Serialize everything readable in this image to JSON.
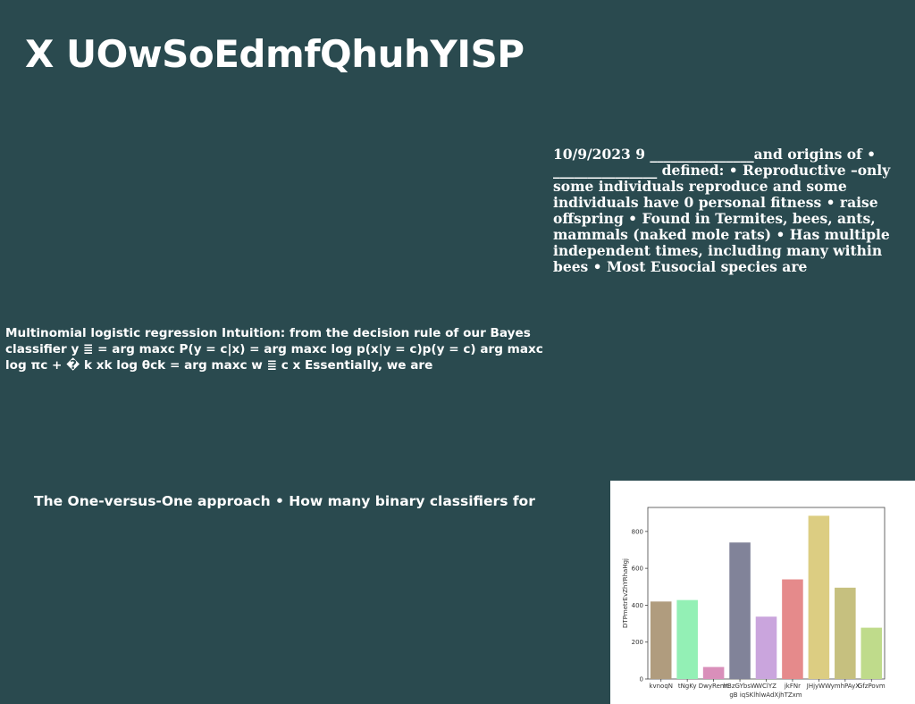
{
  "slide": {
    "title": "X UOwSoEdmfQhuhYISP",
    "eusocial_text": "10/9/2023 9 _______________and origins of • _______________ defined: • Reproductive –only some individuals reproduce and some individuals have 0 personal fitness • raise offspring • Found in Termites, bees, ants, mammals (naked mole rats) • Has multiple independent times, including many within bees • Most Eusocial species are",
    "multinomial_text": "Multinomial logistic regression Intuition: from the decision rule of our Bayes classifier y ≣ = arg maxc P(y = c|x) = arg maxc log p(x|y = c)p(y = c) arg maxc log πc + � k xk log θck = arg maxc w ≣ c x Essentially, we are",
    "ovo_text": "The One-versus-One approach • How many binary classifiers for"
  },
  "chart_data": {
    "type": "bar",
    "categories": [
      "kvnoqN",
      "tNgKy",
      "DwyRemt",
      "lrBzGYbsW",
      "WClYZ",
      "jkFNr",
      "JHjyWW",
      "ymhPAyX",
      "GfzPovm"
    ],
    "values": [
      420,
      428,
      65,
      740,
      338,
      540,
      885,
      495,
      278
    ],
    "colors": [
      "#b09c7e",
      "#93f0b5",
      "#d98fba",
      "#818399",
      "#caa5dd",
      "#e58a8b",
      "#dccd82",
      "#c6c07f",
      "#bfdb8b"
    ],
    "xlabel": "gB iqSKlhlwAdXjhTZxm",
    "ylabel": "DTPmetrEvZhYRhaHgj",
    "yticks": [
      0,
      200,
      400,
      600,
      800
    ],
    "ylim": [
      0,
      930
    ],
    "grid": false
  }
}
